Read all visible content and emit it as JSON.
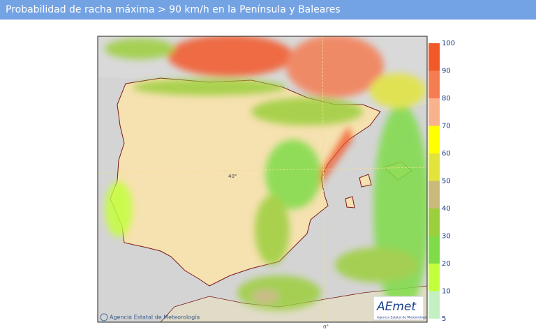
{
  "header": {
    "title": "Probabilidad de racha máxima > 90 km/h en la Península y Baleares"
  },
  "map": {
    "latitude_label": "40°",
    "longitude_label": "0°",
    "credit": "Agencia Estatal de Meteorología",
    "logo": {
      "name": "AEmet",
      "subtitle": "Agencia Estatal de Meteorología"
    }
  },
  "legend": {
    "ticks": [
      100,
      90,
      80,
      70,
      60,
      50,
      40,
      30,
      20,
      10,
      5
    ],
    "colors": [
      "#f2592a",
      "#f47d52",
      "#f8b38c",
      "#ffff00",
      "#e2e43c",
      "#c9b97a",
      "#9ccf3c",
      "#7fdc48",
      "#c4ff3c",
      "#c2f0c2"
    ]
  }
}
